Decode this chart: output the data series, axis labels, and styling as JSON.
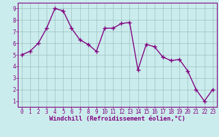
{
  "x": [
    0,
    1,
    2,
    3,
    4,
    5,
    6,
    7,
    8,
    9,
    10,
    11,
    12,
    13,
    14,
    15,
    16,
    17,
    18,
    19,
    20,
    21,
    22,
    23
  ],
  "y": [
    5.0,
    5.3,
    6.0,
    7.3,
    9.0,
    8.8,
    7.3,
    6.3,
    5.9,
    5.3,
    7.3,
    7.3,
    7.7,
    7.8,
    3.7,
    5.9,
    5.7,
    4.8,
    4.5,
    4.6,
    3.6,
    2.0,
    1.0,
    2.0
  ],
  "line_color": "#800080",
  "marker": "+",
  "marker_size": 4,
  "bg_color": "#cbecec",
  "grid_color": "#9dbfbf",
  "xlabel": "Windchill (Refroidissement éolien,°C)",
  "ylim": [
    0.5,
    9.5
  ],
  "xlim": [
    -0.5,
    23.5
  ],
  "yticks": [
    1,
    2,
    3,
    4,
    5,
    6,
    7,
    8,
    9
  ],
  "xticks": [
    0,
    1,
    2,
    3,
    4,
    5,
    6,
    7,
    8,
    9,
    10,
    11,
    12,
    13,
    14,
    15,
    16,
    17,
    18,
    19,
    20,
    21,
    22,
    23
  ],
  "label_color": "#800080",
  "tick_color": "#800080",
  "font_size_label": 6.5,
  "font_size_tick": 5.5,
  "line_width": 1.0,
  "marker_color": "#800080"
}
